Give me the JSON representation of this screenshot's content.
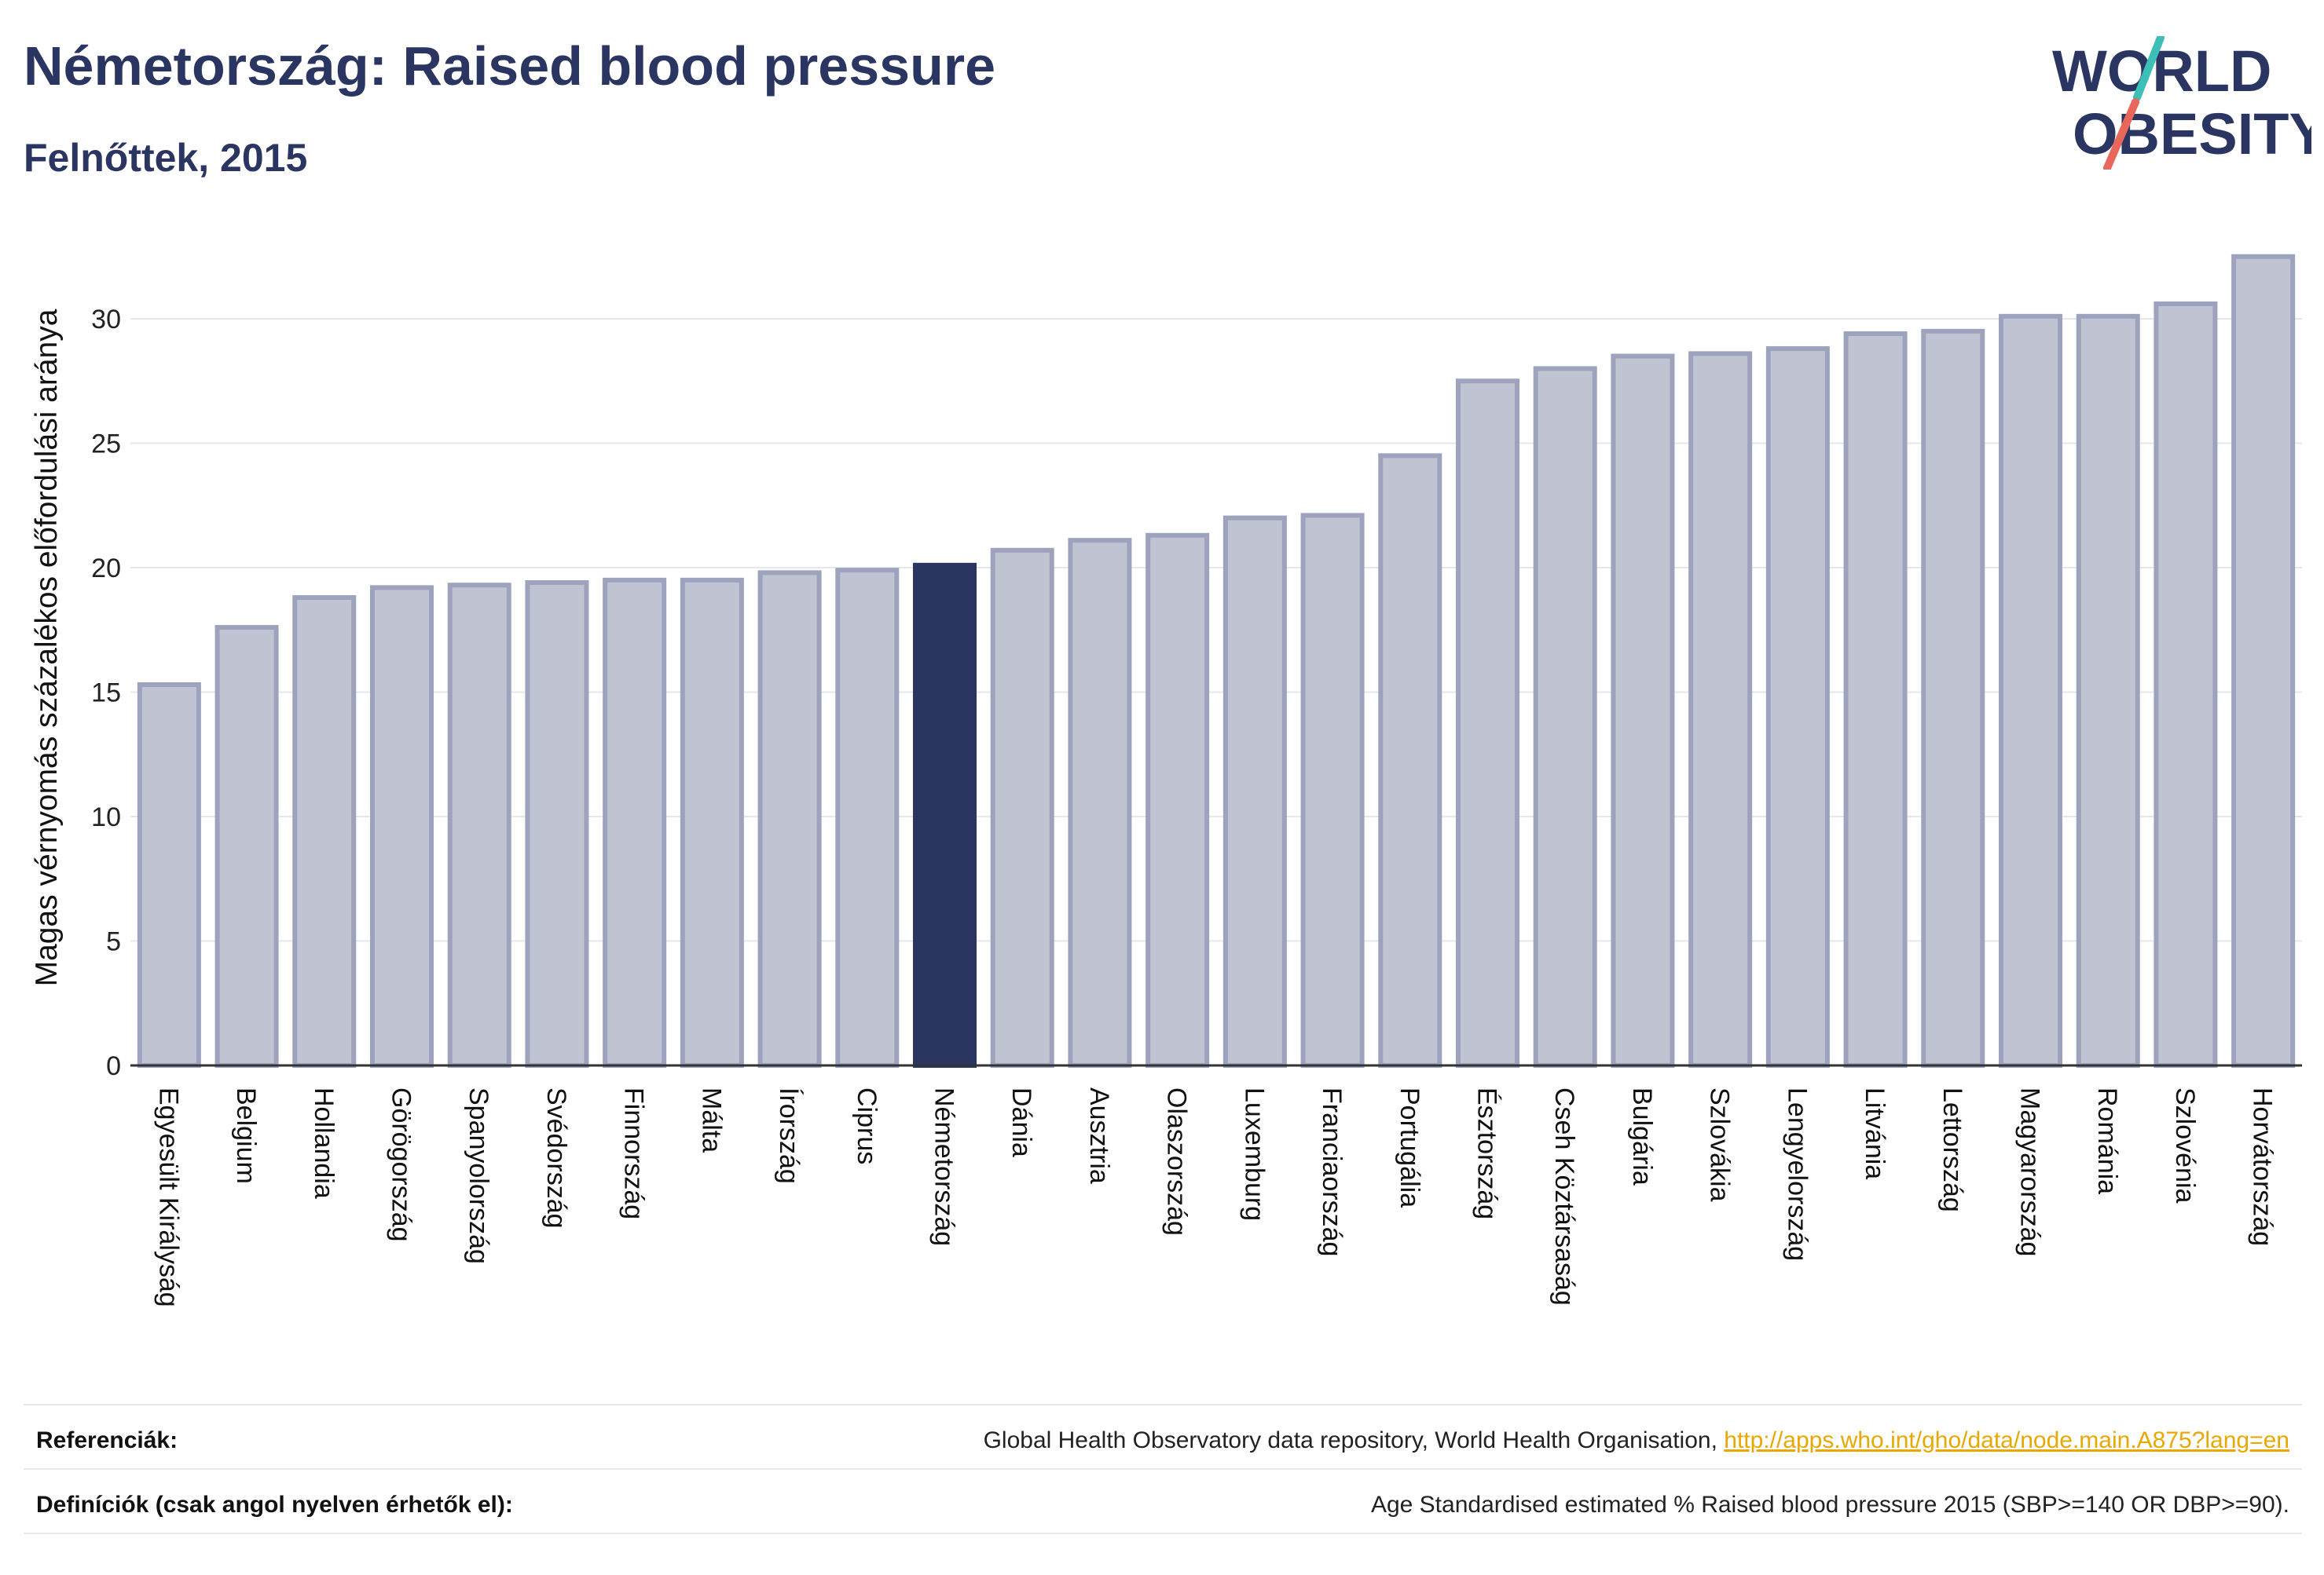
{
  "header": {
    "title": "Németország: Raised blood pressure",
    "subtitle": "Felnőttek, 2015",
    "logo_line1": "WORLD",
    "logo_line2": "OBESITY"
  },
  "colors": {
    "highlight": "#2b3561",
    "bar_fill": "#c0c3d1",
    "bar_stroke": "#9da3bd",
    "title": "#2b3561",
    "link": "#e8a800",
    "logo_slash_teal": "#3bbfb7",
    "logo_slash_red": "#e8675a"
  },
  "chart_data": {
    "type": "bar",
    "title": "Németország: Raised blood pressure",
    "subtitle": "Felnőttek, 2015",
    "xlabel": "",
    "ylabel": "Magas vérnyomás százalékos előfordulási aránya",
    "ylim": [
      0,
      33
    ],
    "yticks": [
      0,
      5,
      10,
      15,
      20,
      25,
      30
    ],
    "grid": true,
    "highlight": "Németország",
    "categories": [
      "Egyesült Királyság",
      "Belgium",
      "Hollandia",
      "Görögország",
      "Spanyolország",
      "Svédország",
      "Finnország",
      "Málta",
      "Írország",
      "Ciprus",
      "Németország",
      "Dánia",
      "Ausztria",
      "Olaszország",
      "Luxemburg",
      "Franciaország",
      "Portugália",
      "Észtország",
      "Cseh Köztársaság",
      "Bulgária",
      "Szlovákia",
      "Lengyelország",
      "Litvánia",
      "Lettország",
      "Magyarország",
      "Románia",
      "Szlovénia",
      "Horvátország"
    ],
    "values": [
      15.3,
      17.6,
      18.8,
      19.2,
      19.3,
      19.4,
      19.5,
      19.5,
      19.8,
      19.9,
      20.1,
      20.7,
      21.1,
      21.3,
      22.0,
      22.1,
      24.5,
      27.5,
      28.0,
      28.5,
      28.6,
      28.8,
      29.4,
      29.5,
      30.1,
      30.1,
      30.6,
      32.5
    ]
  },
  "footer": {
    "references_label": "Referenciák:",
    "references_text": "Global Health Observatory data repository, World Health Organisation,",
    "references_link": "http://apps.who.int/gho/data/node.main.A875?lang=en",
    "definitions_label": "Definíciók (csak angol nyelven érhetők el):",
    "definitions_text": "Age Standardised estimated % Raised blood pressure 2015 (SBP>=140 OR DBP>=90)."
  }
}
